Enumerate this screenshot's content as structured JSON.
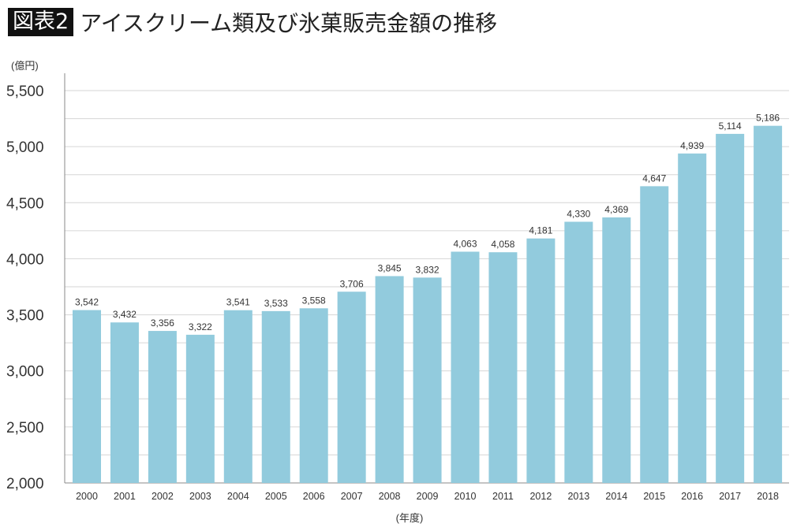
{
  "header": {
    "badge": "図表2",
    "title": "アイスクリーム類及び氷菓販売金額の推移"
  },
  "chart_data": {
    "type": "bar",
    "title": "アイスクリーム類及び氷菓販売金額の推移",
    "ylabel": "(億円)",
    "xlabel": "(年度)",
    "ylim": [
      2000,
      5500
    ],
    "yticks": [
      2000,
      2500,
      3000,
      3500,
      4000,
      4500,
      5000,
      5500
    ],
    "ytick_labels": [
      "2,000",
      "2,500",
      "3,000",
      "3,500",
      "4,000",
      "4,500",
      "5,000",
      "5,500"
    ],
    "grid": true,
    "categories": [
      "2000",
      "2001",
      "2002",
      "2003",
      "2004",
      "2005",
      "2006",
      "2007",
      "2008",
      "2009",
      "2010",
      "2011",
      "2012",
      "2013",
      "2014",
      "2015",
      "2016",
      "2017",
      "2018"
    ],
    "values": [
      3542,
      3432,
      3356,
      3322,
      3541,
      3533,
      3558,
      3706,
      3845,
      3832,
      4063,
      4058,
      4181,
      4330,
      4369,
      4647,
      4939,
      5114,
      5186
    ],
    "data_labels": [
      "3,542",
      "3,432",
      "3,356",
      "3,322",
      "3,541",
      "3,533",
      "3,558",
      "3,706",
      "3,845",
      "3,832",
      "4,063",
      "4,058",
      "4,181",
      "4,330",
      "4,369",
      "4,647",
      "4,939",
      "5,114",
      "5,186"
    ],
    "bar_color": "#92cbdd"
  }
}
